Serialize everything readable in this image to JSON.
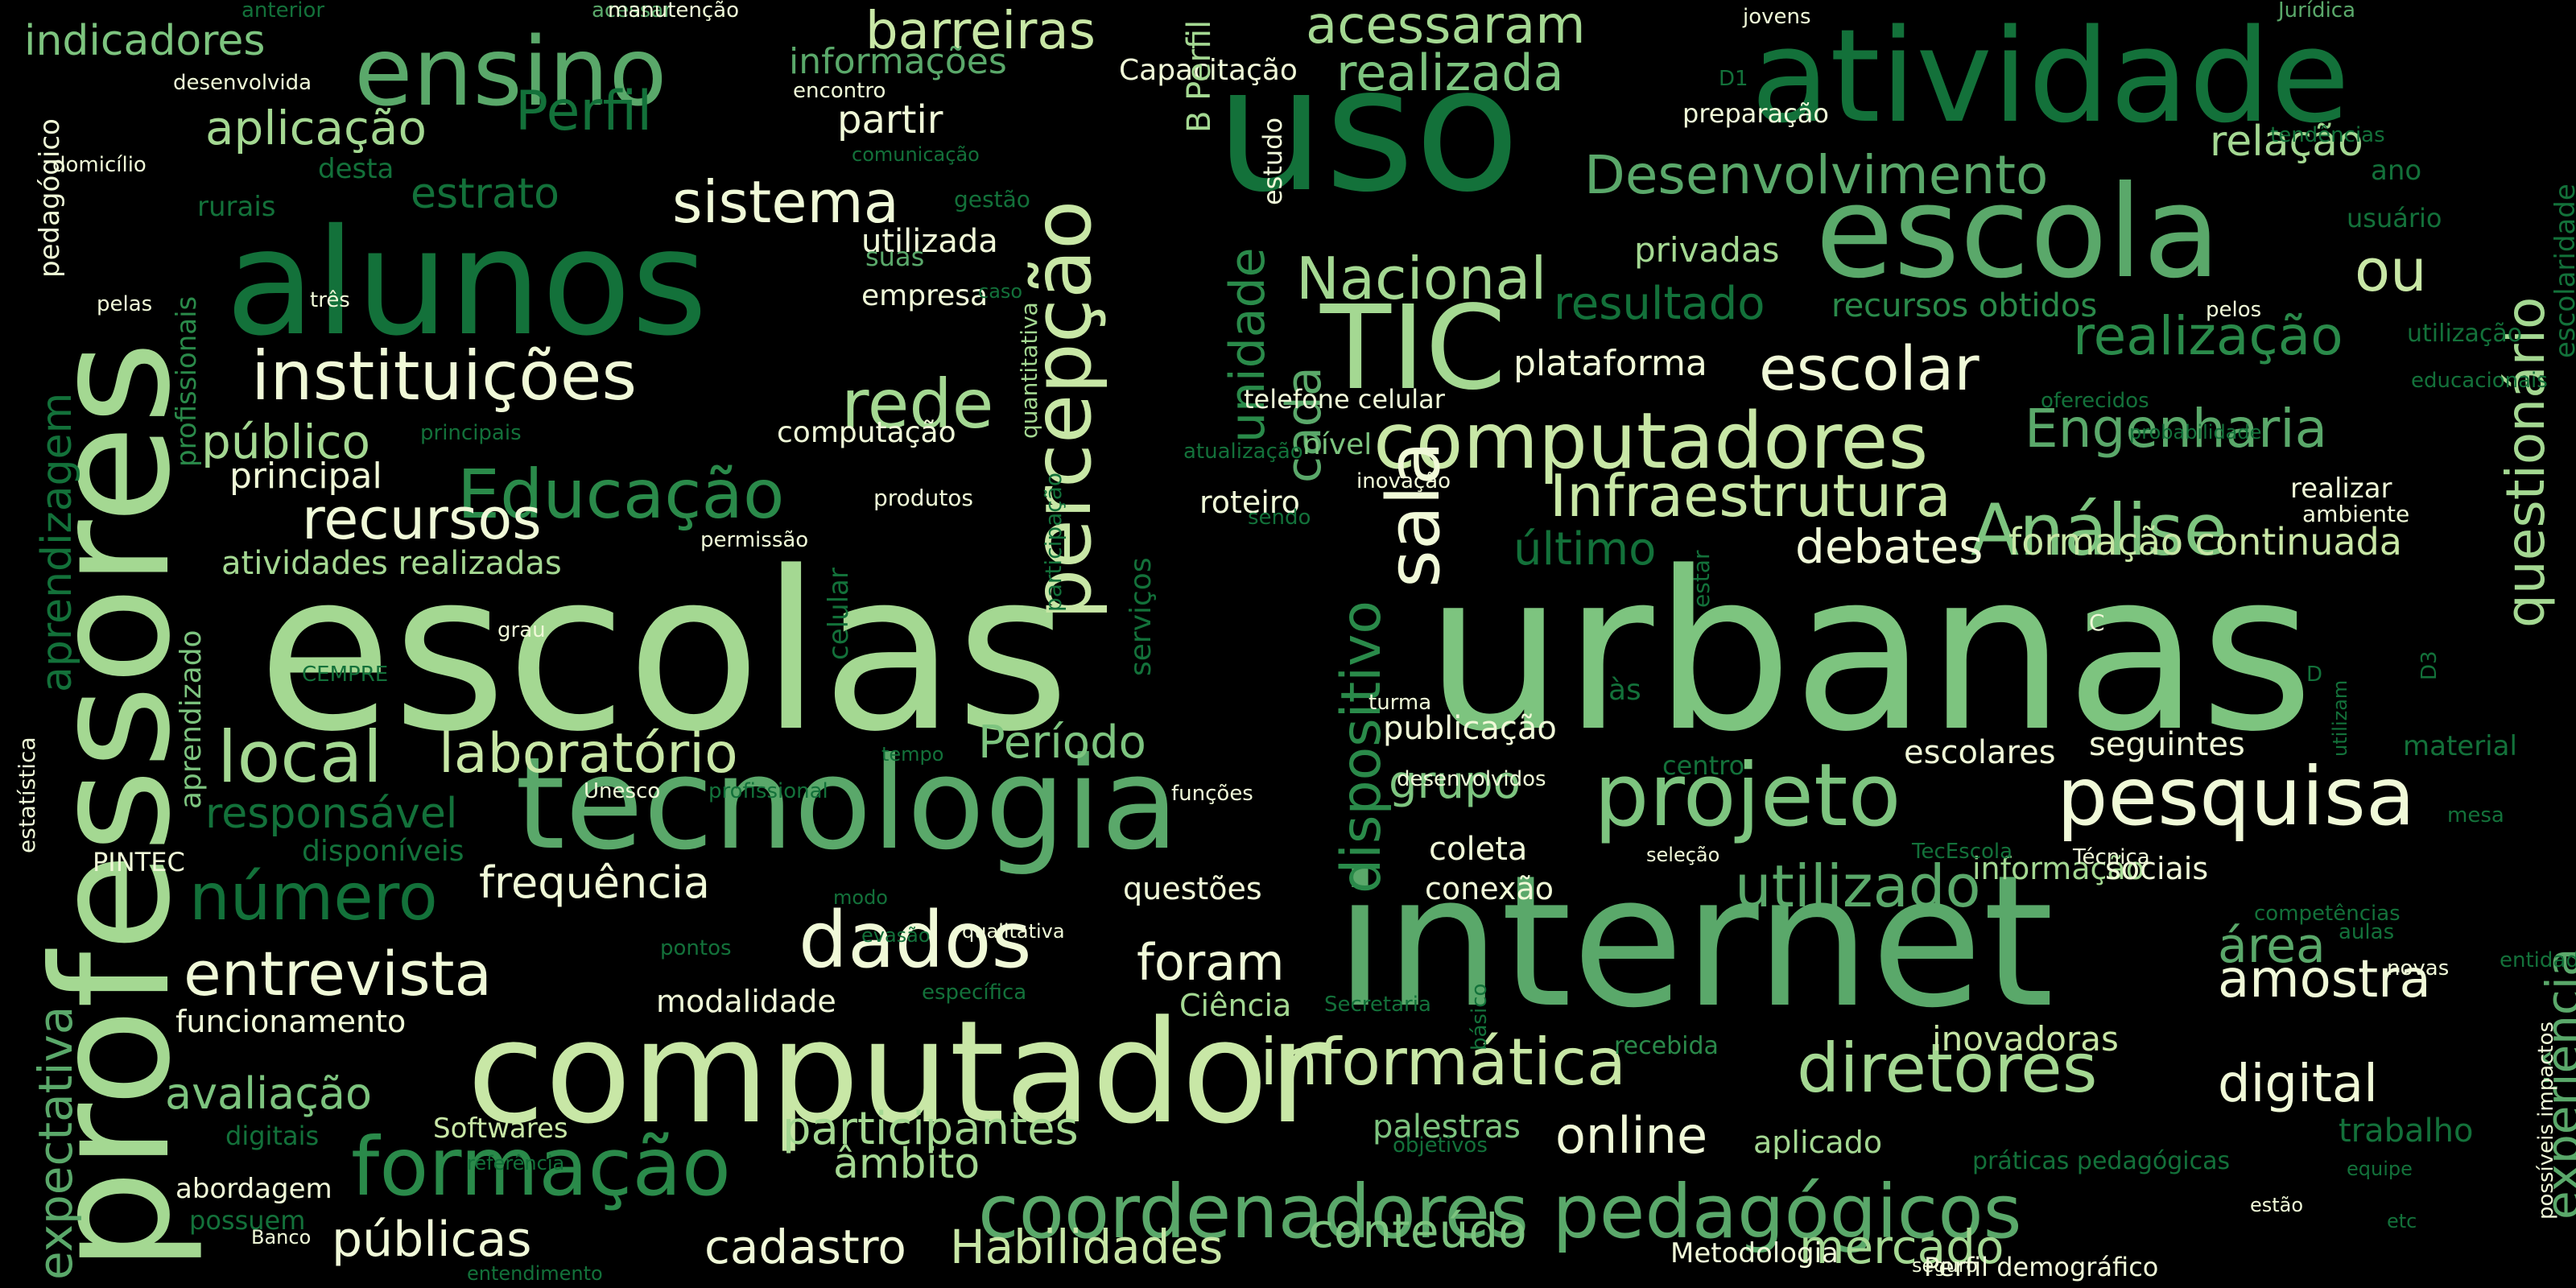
{
  "background": "#000000",
  "palette": [
    "#04592a",
    "#13713a",
    "#2a8a4a",
    "#5aa86a",
    "#7dc47f",
    "#a4d892",
    "#c8e7a6",
    "#f0f9d8",
    "#ffffff"
  ],
  "words": [
    "escolas",
    "urbanas",
    "internet",
    "professores",
    "uso",
    "alunos",
    "atividade",
    "computador",
    "tecnologia",
    "escola",
    "pesquisa",
    "projeto",
    "TIC",
    "percepção",
    "computadores",
    "coordenadores pedagógicos",
    "ensino",
    "Infraestrutura",
    "formação",
    "Análise",
    "instituições",
    "dados",
    "diretores",
    "informática",
    "questionário",
    "sala",
    "entrevista",
    "Educação",
    "rede",
    "local",
    "laboratório",
    "escolar",
    "número",
    "dispositivo",
    "utilizado",
    "recursos",
    "sistema",
    "Nacional",
    "Desenvolvimento",
    "realização",
    "Engenharia",
    "barreiras",
    "acessaram",
    "realizada",
    "unidade",
    "cada",
    "resultado",
    "experiência",
    "experiencia-extra",
    "amostra",
    "área",
    "digital",
    "online",
    "participantes",
    "público",
    "aplicação",
    "Perfil",
    "foram",
    "público-extra",
    "expectativa",
    "aprendizagem",
    "responsável",
    "avaliação",
    "públicas",
    "cadastro",
    "Habilidades",
    "conteúdo",
    "mercado",
    "debates",
    "formação continuada",
    "último",
    "estrato",
    "Período",
    "grupo",
    "frequência",
    "âmbito",
    "trabalho",
    "relação",
    "ou",
    "publicação",
    "indicadores",
    "plataforma",
    "partir",
    "privadas",
    "informações",
    "principal",
    "atividades realizadas",
    "inovadoras",
    "utilizada",
    "empresa",
    "computação",
    "questões",
    "conexão",
    "coleta",
    "escolares",
    "seguintes",
    "informação",
    "sociais",
    "palestras",
    "aplicado",
    "roteiro",
    "nível",
    "telefone celular",
    "Capacitação",
    "preparação",
    "Ciência",
    "modalidade",
    "funcionamento",
    "Softwares",
    "abordagem",
    "possuem",
    "recursos obtidos",
    "realizar",
    "ambiente",
    "material",
    "Metodologia",
    "Perfil demográfico",
    "PINTEC",
    "disponíveis",
    "digitais",
    "aprendizado",
    "pedagógico",
    "rurais",
    "desta",
    "suas",
    "gestão",
    "domicílio",
    "desenvolvida",
    "três",
    "pelas",
    "usuário",
    "ano",
    "tendências",
    "Jurídica",
    "jovens",
    "D1",
    "encontro",
    "comunicação",
    "acessar",
    "anterior",
    "manutenção",
    "B Perfil",
    "estudo",
    "quantitativa",
    "participação",
    "celular",
    "serviços",
    "estar",
    "às",
    "turma",
    "sendo",
    "inovação",
    "produtos",
    "permissão",
    "CEMPRE",
    "grau",
    "D",
    "C",
    "D3",
    "utilizam",
    "profissionais",
    "estatística",
    "escolaridade",
    "oferecidos",
    "probabilidade",
    "pelos",
    "entidade",
    "educacionais",
    "utilização",
    "atualização",
    "principais",
    "tempo",
    "Unesco",
    "profissional",
    "funções",
    "desenvolvidos",
    "centro",
    "TecEscola",
    "Técnica",
    "seleção",
    "modo",
    "evasão",
    "qualitativa",
    "pontos",
    "específica",
    "Secretaria",
    "básico",
    "recebida",
    "práticas pedagógicas",
    "estão",
    "equipe",
    "etc",
    "competências",
    "aulas",
    "novas",
    "possíveis impactos",
    "objetivos",
    "referência",
    "Banco",
    "seguro",
    "entendimento",
    "mesa",
    "caso"
  ]
}
